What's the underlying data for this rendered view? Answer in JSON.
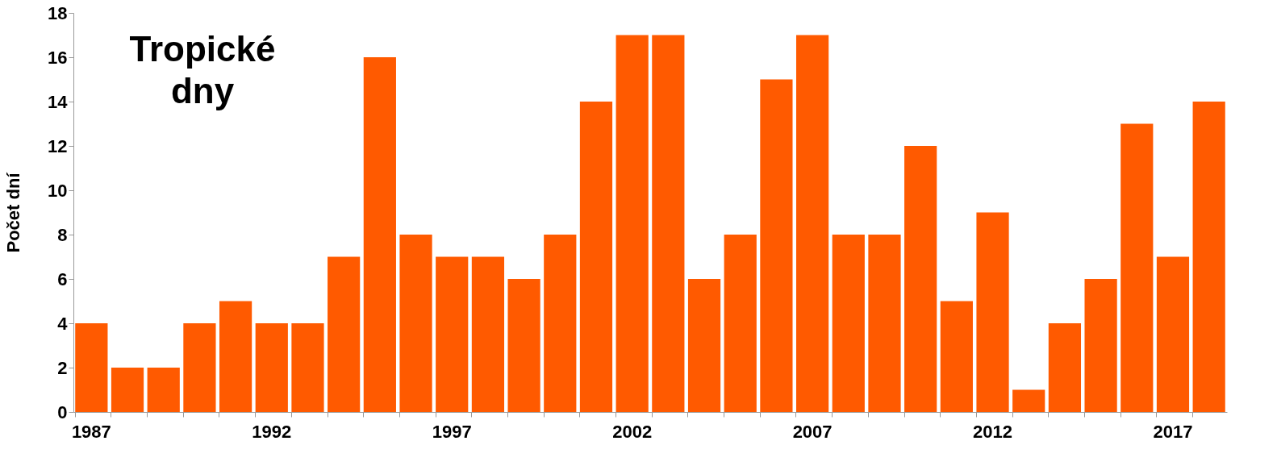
{
  "chart_data": {
    "type": "bar",
    "title": "Tropické dny",
    "ylabel": "Počet dní",
    "categories": [
      "1987",
      null,
      null,
      null,
      null,
      "1992",
      null,
      null,
      null,
      null,
      "1997",
      null,
      null,
      null,
      null,
      "2002",
      null,
      null,
      null,
      null,
      "2007",
      null,
      null,
      null,
      null,
      "2012",
      null,
      null,
      null,
      null,
      "2017",
      null
    ],
    "values": [
      4,
      2,
      2,
      4,
      5,
      4,
      4,
      7,
      16,
      8,
      7,
      7,
      6,
      8,
      14,
      17,
      17,
      6,
      8,
      15,
      17,
      8,
      8,
      12,
      5,
      9,
      1,
      4,
      6,
      13,
      7,
      14
    ],
    "color": "#ff5a00",
    "ylim": [
      0,
      18
    ],
    "yticks": [
      0,
      2,
      4,
      6,
      8,
      10,
      12,
      14,
      16,
      18
    ],
    "grid": false
  }
}
